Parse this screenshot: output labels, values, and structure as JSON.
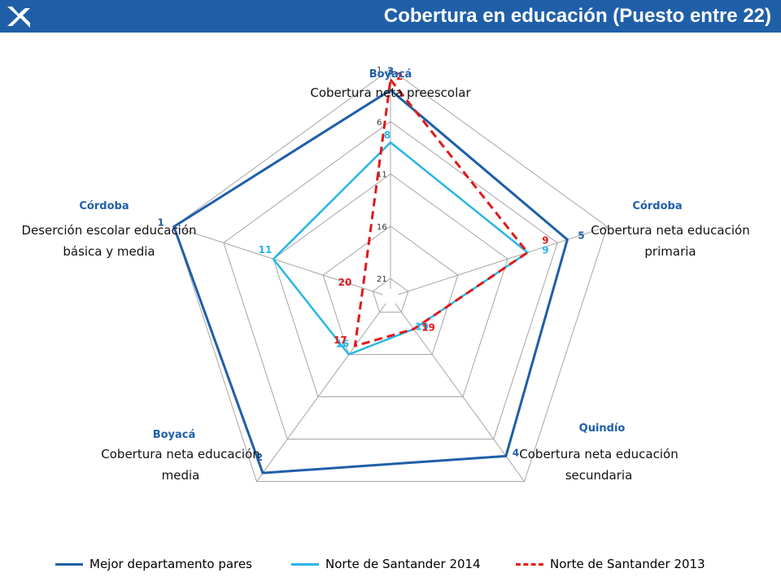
{
  "header": {
    "title": "Cobertura en educación (Puesto entre 22)",
    "logo_icon": "star-logo-icon",
    "bar_color": "#1f5fa8"
  },
  "chart_data": {
    "type": "radar",
    "title": "",
    "scale": {
      "min": 1,
      "max": 22,
      "reversed": true,
      "ticks": [
        1,
        6,
        11,
        16,
        21
      ]
    },
    "grid": true,
    "legend_placement": "bottom",
    "axes": [
      {
        "label": "Cobertura neta preescolar",
        "best_department": "Boyacá"
      },
      {
        "label": "Cobertura neta educación primaria",
        "best_department": "Córdoba"
      },
      {
        "label": "Cobertura neta educación secundaria",
        "best_department": "Quindío"
      },
      {
        "label": "Cobertura neta educación media",
        "best_department": "Boyacá"
      },
      {
        "label": "Deserción escolar educación básica y media",
        "best_department": "Córdoba"
      }
    ],
    "series": [
      {
        "name": "Mejor departamento pares",
        "values": [
          3,
          5,
          4,
          2,
          1
        ],
        "color": "#1f5fa8",
        "style": "solid"
      },
      {
        "name": "Norte de Santander 2014",
        "values": [
          8,
          9,
          19,
          16,
          11
        ],
        "color": "#29b6e8",
        "style": "solid"
      },
      {
        "name": "Norte de Santander 2013",
        "values": [
          2,
          9,
          19,
          17,
          20
        ],
        "color": "#e0191b",
        "style": "dashed"
      }
    ]
  }
}
